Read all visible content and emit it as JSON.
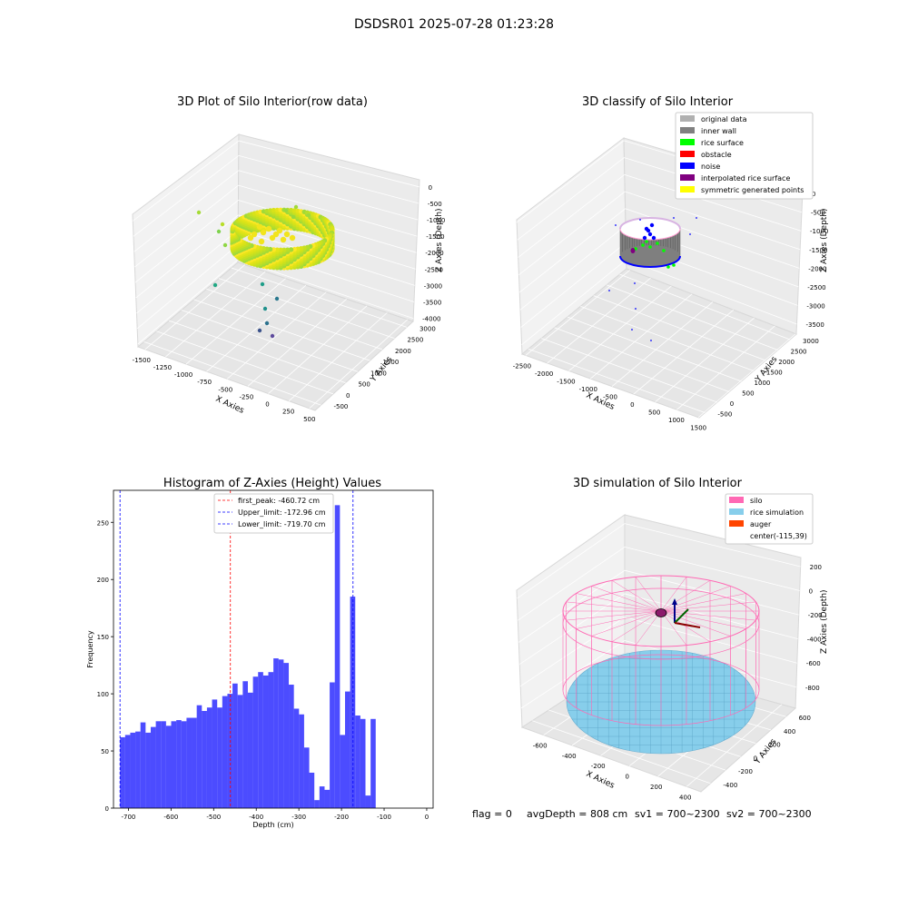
{
  "figure_title": "DSDSR01 2025-07-28 01:23:28",
  "status_line": {
    "flag": "flag = 0",
    "avg_depth": "avgDepth = 808 cm",
    "sv1": "sv1 = 700~2300",
    "sv2": "sv2 = 700~2300"
  },
  "colors": {
    "histogram_bar": "#0000ff",
    "first_peak_line": "#ff0000",
    "limit_line": "#0000ff",
    "silo": "#ff69b4",
    "rice_simulation": "#87ceeb",
    "auger": "#ff4500"
  },
  "chart_data": [
    {
      "type": "scatter",
      "projection": "3d",
      "title": "3D Plot of Silo Interior(row data)",
      "xlabel": "X Axies",
      "ylabel": "Y Axies",
      "zlabel": "Z Axies (Depth)",
      "xticks": [
        "-1500",
        "-1250",
        "-1000",
        "-750",
        "-500",
        "-250",
        "0",
        "250",
        "500"
      ],
      "yticks": [
        "-500",
        "0",
        "500",
        "1000",
        "1500",
        "2000",
        "2500",
        "3000"
      ],
      "zticks": [
        "0",
        "-500",
        "-1000",
        "-1500",
        "-2000",
        "-2500",
        "-3000",
        "-3500",
        "-4000"
      ],
      "xlim": [
        -1600,
        550
      ],
      "ylim": [
        -600,
        3100
      ],
      "zlim": [
        -4100,
        100
      ],
      "colormap": "viridis",
      "grid": true
    },
    {
      "type": "scatter",
      "projection": "3d",
      "title": "3D classify of Silo Interior",
      "xlabel": "X Axies",
      "ylabel": "Y Axies",
      "zlabel": "Z Axies (Depth)",
      "xticks": [
        "-2500",
        "-2000",
        "-1500",
        "-1000",
        "-500",
        "0",
        "500",
        "1000",
        "1500"
      ],
      "yticks": [
        "-500",
        "0",
        "500",
        "1000",
        "1500",
        "2000",
        "2500",
        "3000"
      ],
      "zticks": [
        "0",
        "-500",
        "-1000",
        "-1500",
        "-2000",
        "-2500",
        "-3000",
        "-3500"
      ],
      "legend_position": "top-right",
      "legend": [
        {
          "label": "original data",
          "color": "#b0b0b0"
        },
        {
          "label": "inner wall",
          "color": "#808080"
        },
        {
          "label": "rice surface",
          "color": "#00ff00"
        },
        {
          "label": "obstacle",
          "color": "#ff0000"
        },
        {
          "label": "noise",
          "color": "#0000ff"
        },
        {
          "label": "interpolated rice surface",
          "color": "#800080"
        },
        {
          "label": "symmetric generated points",
          "color": "#ffff00"
        }
      ],
      "grid": true
    },
    {
      "type": "bar",
      "title": "Histogram of Z-Axies (Height) Values",
      "xlabel": "Depth (cm)",
      "ylabel": "Frequency",
      "xlim": [
        -735,
        15
      ],
      "ylim": [
        0,
        278
      ],
      "xticks": [
        -700,
        -600,
        -500,
        -400,
        -300,
        -200,
        -100,
        0
      ],
      "yticks": [
        0,
        50,
        100,
        150,
        200,
        250
      ],
      "bin_start": -719.7,
      "bin_width": 12.0,
      "values": [
        62,
        64,
        66,
        67,
        75,
        66,
        71,
        76,
        76,
        72,
        76,
        77,
        76,
        79,
        79,
        90,
        85,
        88,
        95,
        88,
        98,
        100,
        109,
        99,
        111,
        101,
        115,
        119,
        116,
        119,
        131,
        130,
        127,
        108,
        87,
        82,
        53,
        31,
        7,
        19,
        16,
        110,
        265,
        64,
        102,
        185,
        81,
        78,
        11,
        78
      ],
      "vlines": [
        {
          "label": "first_peak: -460.72 cm",
          "x": -460.72,
          "color": "#ff0000"
        },
        {
          "label": "Upper_limit: -172.96 cm",
          "x": -172.96,
          "color": "#0000ff"
        },
        {
          "label": "Lower_limit: -719.70 cm",
          "x": -719.7,
          "color": "#0000ff"
        }
      ],
      "legend_position": "top-center",
      "grid": false
    },
    {
      "type": "surface",
      "projection": "3d",
      "title": "3D simulation of Silo Interior",
      "xlabel": "X Axies",
      "ylabel": "Y Axies",
      "zlabel": "Z Axies (Depth)",
      "xticks": [
        "-600",
        "-400",
        "-200",
        "0",
        "200",
        "400"
      ],
      "yticks": [
        "-400",
        "-200",
        "0",
        "200",
        "400",
        "600"
      ],
      "zticks": [
        "200",
        "0",
        "-200",
        "-400",
        "-600",
        "-800"
      ],
      "legend_position": "top-right",
      "legend": [
        {
          "label": "silo",
          "color": "#ff69b4",
          "swatch": true
        },
        {
          "label": "rice simulation",
          "color": "#87ceeb",
          "swatch": true
        },
        {
          "label": "auger",
          "color": "#ff4500",
          "swatch": true
        },
        {
          "label": "center(-115,39)",
          "color": "",
          "swatch": false
        }
      ],
      "grid": true
    }
  ]
}
